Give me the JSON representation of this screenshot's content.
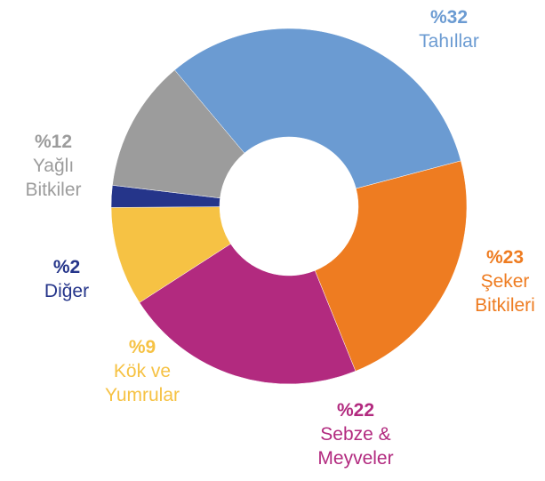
{
  "chart_data": {
    "type": "pie",
    "categories": [
      "Tahıllar",
      "Şeker Bitkileri",
      "Sebze & Meyveler",
      "Kök ve Yumrular",
      "Diğer",
      "Yağlı Bitkiler"
    ],
    "values": [
      32,
      23,
      22,
      9,
      2,
      12
    ],
    "value_labels": [
      "%32",
      "%23",
      "%22",
      "%9",
      "%2",
      "%12"
    ],
    "colors": [
      "#6b9bd2",
      "#ee7c21",
      "#b22a7f",
      "#f6c244",
      "#25358a",
      "#9c9c9c"
    ]
  }
}
